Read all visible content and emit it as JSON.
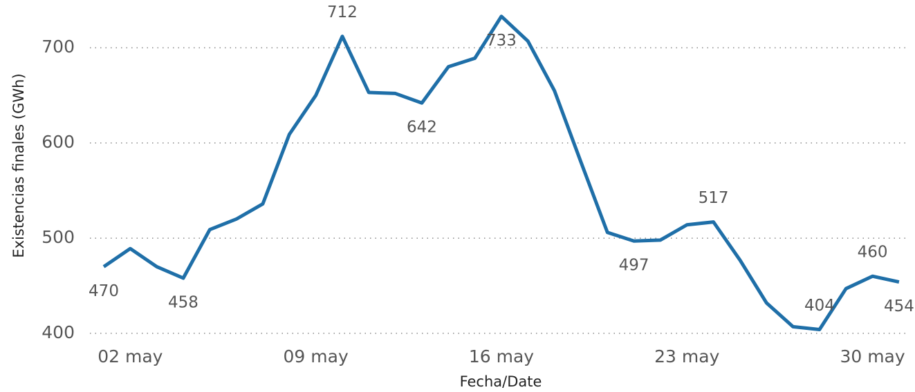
{
  "chart_data": {
    "type": "line",
    "x_label": "Fecha/Date",
    "y_label": "Existencias finales (GWh)",
    "categories": [
      null,
      "02 may",
      null,
      null,
      null,
      null,
      null,
      null,
      "09 may",
      null,
      null,
      null,
      null,
      null,
      null,
      "16 may",
      null,
      null,
      null,
      null,
      null,
      null,
      "23 may",
      null,
      null,
      null,
      null,
      null,
      null,
      "30 may",
      null
    ],
    "series": [
      {
        "name": "Existencias finales",
        "color": "#1f6fa8",
        "values": [
          470,
          489,
          470,
          458,
          509,
          520,
          536,
          609,
          650,
          712,
          653,
          652,
          642,
          680,
          689,
          733,
          707,
          655,
          580,
          506,
          497,
          498,
          514,
          517,
          477,
          432,
          407,
          404,
          447,
          460,
          454
        ],
        "value_labels": [
          "470",
          null,
          null,
          "458",
          null,
          null,
          null,
          null,
          null,
          "712",
          null,
          null,
          "642",
          null,
          null,
          "733",
          null,
          null,
          null,
          null,
          "497",
          null,
          null,
          "517",
          null,
          null,
          null,
          "404",
          null,
          "460",
          "454"
        ]
      }
    ],
    "ylim": [
      400,
      750
    ],
    "yticks": [
      400,
      500,
      600,
      700
    ],
    "grid": true
  }
}
